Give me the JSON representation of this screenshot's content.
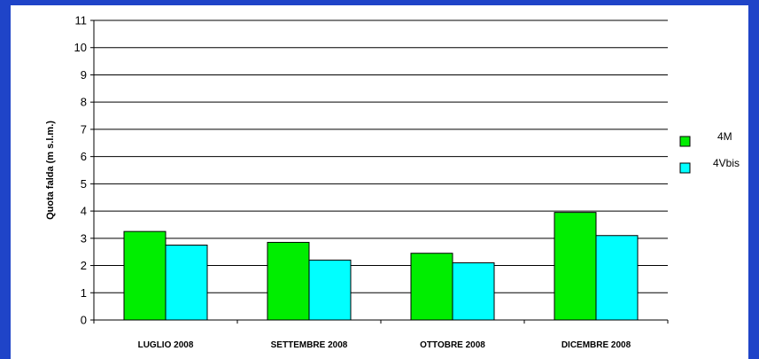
{
  "chart_data": {
    "type": "bar",
    "title": "",
    "xlabel": "",
    "ylabel": "Quota falda (m s.l.m.)",
    "ylim": [
      0,
      11
    ],
    "yticks": [
      0,
      1,
      2,
      3,
      4,
      5,
      6,
      7,
      8,
      9,
      10,
      11
    ],
    "grid": true,
    "legend_position": "right",
    "categories": [
      "LUGLIO 2008",
      "SETTEMBRE 2008",
      "OTTOBRE 2008",
      "DICEMBRE 2008"
    ],
    "series": [
      {
        "name": "4M",
        "color": "#00ee00",
        "values": [
          3.25,
          2.85,
          2.45,
          3.95
        ]
      },
      {
        "name": "4Vbis",
        "color": "#00ffff",
        "values": [
          2.75,
          2.2,
          2.1,
          3.1
        ]
      }
    ]
  },
  "colors": {
    "background": "#1f44c8",
    "panel": "#ffffff"
  }
}
